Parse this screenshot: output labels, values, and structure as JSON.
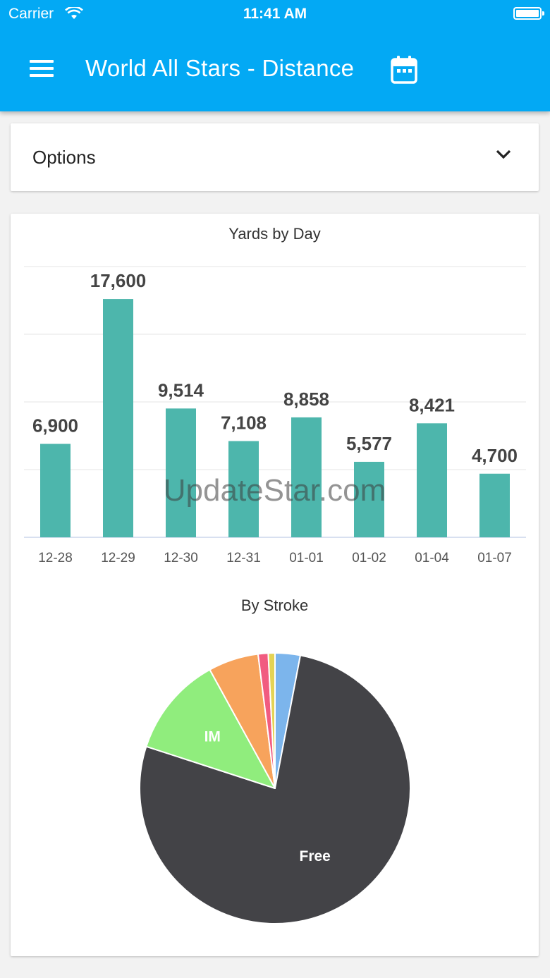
{
  "status_bar": {
    "carrier": "Carrier",
    "time": "11:41 AM"
  },
  "app_bar": {
    "title": "World All Stars - Distance",
    "menu_icon": "hamburger-menu-icon",
    "calendar_icon": "calendar-icon"
  },
  "options": {
    "label": "Options",
    "icon": "chevron-down-icon"
  },
  "colors": {
    "app_bar": "#03a9f4",
    "bar": "#4db6ac",
    "free": "#434347",
    "im": "#90ed7d",
    "orange": "#f7a35c",
    "blue": "#7cb5ec",
    "pink": "#f15c80",
    "yellow": "#e4d354"
  },
  "watermark": "UpdateStar.com",
  "chart_data": [
    {
      "type": "bar",
      "title": "Yards by Day",
      "categories": [
        "12-28",
        "12-29",
        "12-30",
        "12-31",
        "01-01",
        "01-02",
        "01-04",
        "01-07"
      ],
      "values": [
        6900,
        17600,
        9514,
        7108,
        8858,
        5577,
        8421,
        4700
      ],
      "value_labels": [
        "6,900",
        "17,600",
        "9,514",
        "7,108",
        "8,858",
        "5,577",
        "8,421",
        "4,700"
      ],
      "ylim": [
        0,
        20000
      ],
      "grid": true,
      "color": "#4db6ac"
    },
    {
      "type": "pie",
      "title": "By Stroke",
      "slices": [
        {
          "label": "",
          "value": 3,
          "color": "#7cb5ec"
        },
        {
          "label": "Free",
          "value": 77,
          "color": "#434347"
        },
        {
          "label": "IM",
          "value": 12,
          "color": "#90ed7d"
        },
        {
          "label": "",
          "value": 6,
          "color": "#f7a35c"
        },
        {
          "label": "",
          "value": 1.2,
          "color": "#f15c80"
        },
        {
          "label": "",
          "value": 0.8,
          "color": "#e4d354"
        }
      ]
    }
  ]
}
